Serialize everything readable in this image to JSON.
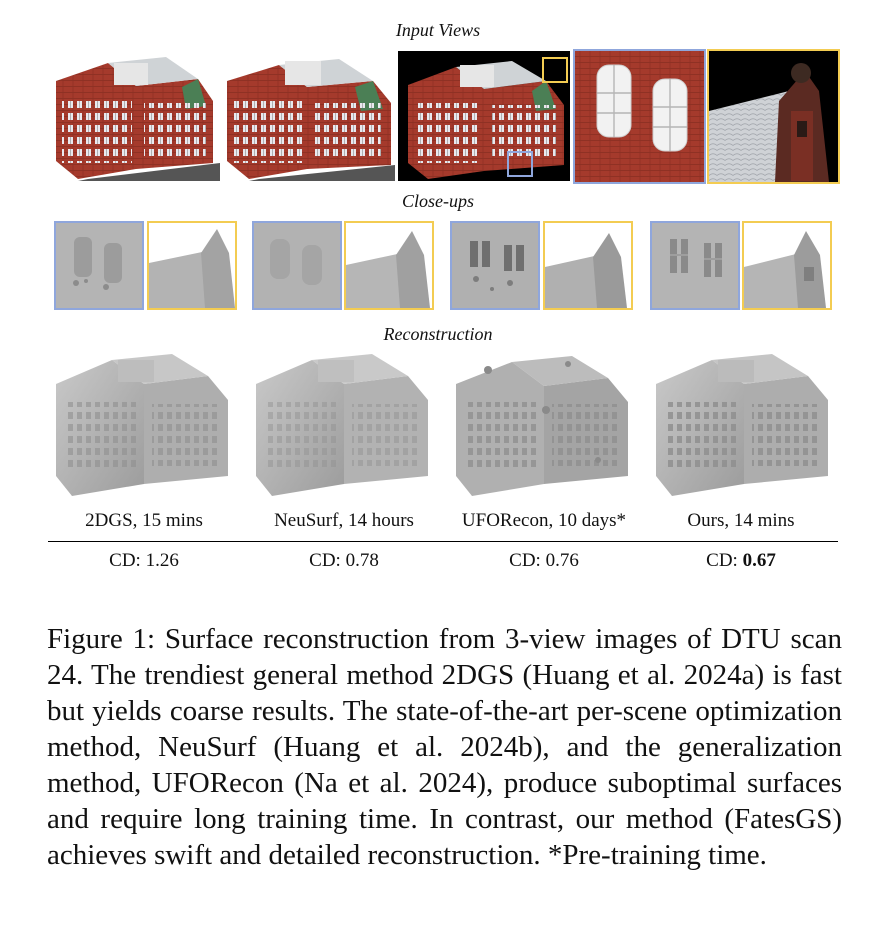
{
  "figure": {
    "section_titles": {
      "input": "Input Views",
      "closeups": "Close-ups",
      "reconstruction": "Reconstruction"
    },
    "methods": [
      {
        "label": "2DGS, 15 mins",
        "cd_prefix": "CD: ",
        "cd_value": "1.26",
        "bold": false
      },
      {
        "label": "NeuSurf, 14 hours",
        "cd_prefix": "CD: ",
        "cd_value": "0.78",
        "bold": false
      },
      {
        "label": "UFORecon, 10 days*",
        "cd_prefix": "CD: ",
        "cd_value": "0.76",
        "bold": false
      },
      {
        "label": "Ours, 14 mins",
        "cd_prefix": "CD: ",
        "cd_value": "0.67",
        "bold": true
      }
    ],
    "colors": {
      "blue_box": "#8fa6dc",
      "yellow_box": "#f3cc52",
      "brick": "#9a3326",
      "mesh": "#b8b8b8"
    }
  },
  "caption": "Figure 1: Surface reconstruction from 3-view images of DTU scan 24. The trendiest general method 2DGS (Huang et al. 2024a) is fast but yields coarse results. The state-of-the-art per-scene optimization method, NeuSurf (Huang et al. 2024b), and the generalization method, UFORecon (Na et al. 2024), produce suboptimal surfaces and require long training time. In contrast, our method (FatesGS) achieves swift and detailed reconstruction. *Pre-training time."
}
